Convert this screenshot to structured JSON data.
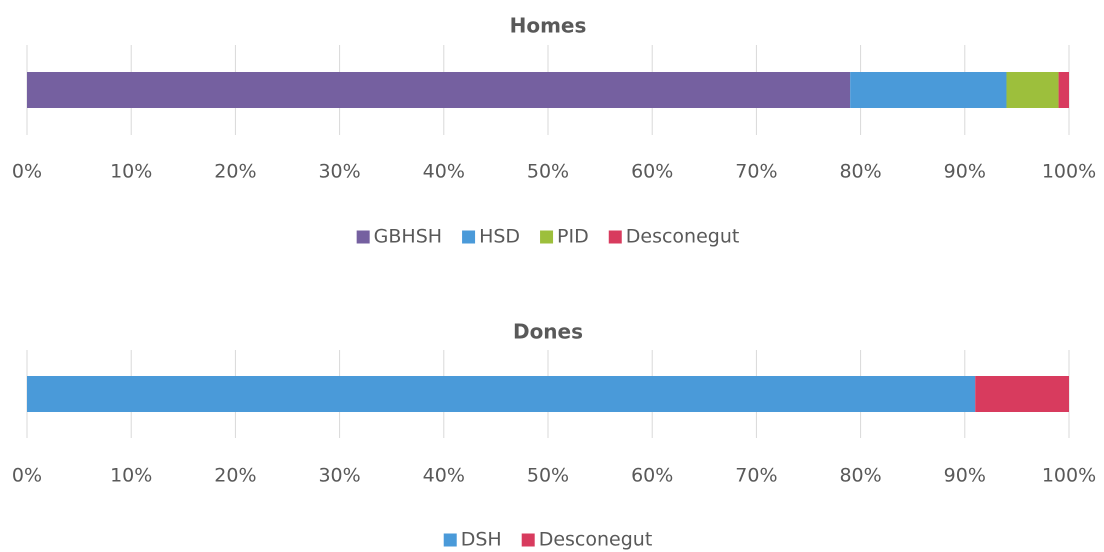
{
  "chart_data": [
    {
      "type": "stacked_bar_horizontal",
      "title": "Homes",
      "categories": [
        null
      ],
      "series": [
        {
          "name": "GBHSH",
          "color": "#7560a0",
          "values": [
            79
          ]
        },
        {
          "name": "HSD",
          "color": "#4a9ad9",
          "values": [
            15
          ]
        },
        {
          "name": "PID",
          "color": "#9dbf3c",
          "values": [
            5
          ]
        },
        {
          "name": "Desconegut",
          "color": "#d83b5e",
          "values": [
            1
          ]
        }
      ],
      "xlim": [
        0,
        100
      ],
      "xticks": [
        {
          "value": 0,
          "label": "0%"
        },
        {
          "value": 10,
          "label": "10%"
        },
        {
          "value": 20,
          "label": "20%"
        },
        {
          "value": 30,
          "label": "30%"
        },
        {
          "value": 40,
          "label": "40%"
        },
        {
          "value": 50,
          "label": "50%"
        },
        {
          "value": 60,
          "label": "60%"
        },
        {
          "value": 70,
          "label": "70%"
        },
        {
          "value": 80,
          "label": "80%"
        },
        {
          "value": 90,
          "label": "90%"
        },
        {
          "value": 100,
          "label": "100%"
        }
      ],
      "grid": true,
      "legend": "bottom"
    },
    {
      "type": "stacked_bar_horizontal",
      "title": "Dones",
      "categories": [
        null
      ],
      "series": [
        {
          "name": "DSH",
          "color": "#4a9ad9",
          "values": [
            91
          ]
        },
        {
          "name": "Desconegut",
          "color": "#d83b5e",
          "values": [
            9
          ]
        }
      ],
      "xlim": [
        0,
        100
      ],
      "xticks": [
        {
          "value": 0,
          "label": "0%"
        },
        {
          "value": 10,
          "label": "10%"
        },
        {
          "value": 20,
          "label": "20%"
        },
        {
          "value": 30,
          "label": "30%"
        },
        {
          "value": 40,
          "label": "40%"
        },
        {
          "value": 50,
          "label": "50%"
        },
        {
          "value": 60,
          "label": "60%"
        },
        {
          "value": 70,
          "label": "70%"
        },
        {
          "value": 80,
          "label": "80%"
        },
        {
          "value": 90,
          "label": "90%"
        },
        {
          "value": 100,
          "label": "100%"
        }
      ],
      "grid": true,
      "legend": "bottom"
    }
  ]
}
